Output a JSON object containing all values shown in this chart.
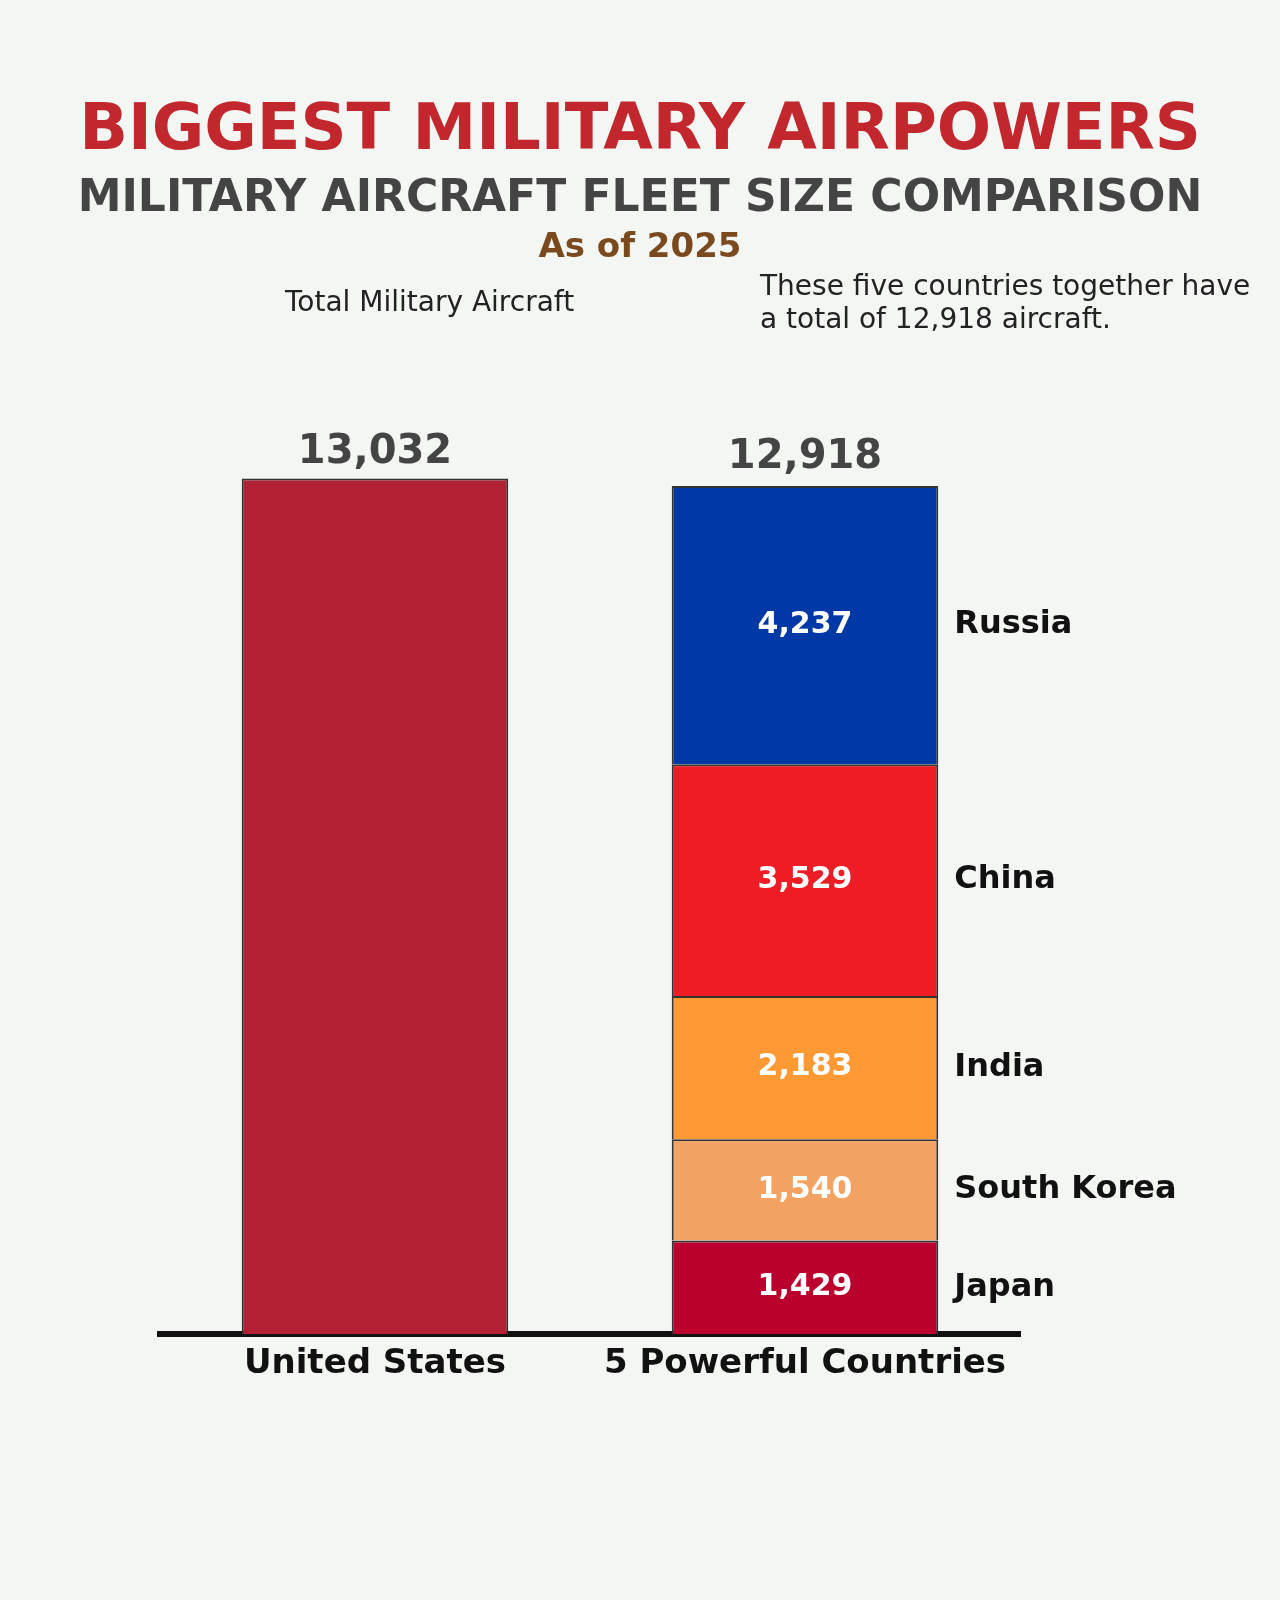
{
  "chart_data": {
    "type": "bar",
    "title": "BIGGEST MILITARY AIRPOWERS",
    "subtitle": "MILITARY AIRCRAFT FLEET SIZE COMPARISON",
    "annotations": [
      "As of 2025",
      "Total Military Aircraft",
      "These five countries together have a total of 12,918 aircraft."
    ],
    "categories": [
      "United States",
      "5 Powerful Countries"
    ],
    "stacked": true,
    "legend": false,
    "grid": false,
    "tick_labels": "x",
    "series": [
      {
        "color": "#b22234",
        "values": [
          13032,
          null
        ],
        "value_labels": [
          "13,032",
          null
        ]
      },
      {
        "name": "Japan",
        "color": "#bc002d",
        "values": [
          null,
          1429
        ],
        "value_labels": [
          null,
          "1,429"
        ]
      },
      {
        "name": "South Korea",
        "color": "#f4a261",
        "values": [
          null,
          1540
        ],
        "value_labels": [
          null,
          "1,540"
        ]
      },
      {
        "name": "India",
        "color": "#ff9933",
        "values": [
          null,
          2183
        ],
        "value_labels": [
          null,
          "2,183"
        ]
      },
      {
        "name": "China",
        "color": "#ee1c25",
        "values": [
          null,
          3529
        ],
        "value_labels": [
          null,
          "3,529"
        ]
      },
      {
        "name": "Russia",
        "color": "#0039a6",
        "values": [
          null,
          4237
        ],
        "value_labels": [
          null,
          "4,237"
        ]
      }
    ],
    "totals": [
      null,
      "12,918"
    ]
  }
}
